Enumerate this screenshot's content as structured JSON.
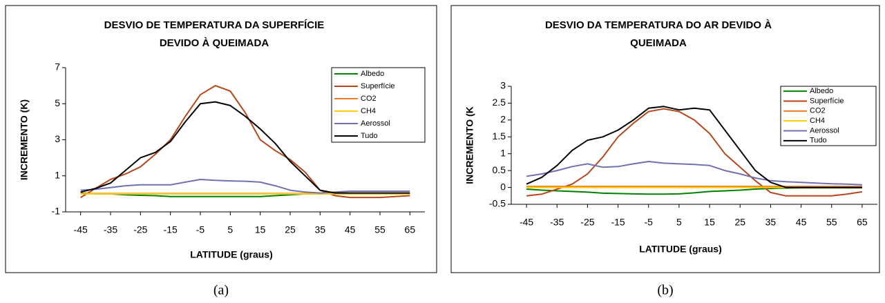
{
  "chart_data": [
    {
      "type": "line",
      "title": [
        "DESVIO DE TEMPERATURA DA SUPERFÍCIE",
        "DEVIDO À QUEIMADA"
      ],
      "x_label": "LATITUDE (graus)",
      "y_label": "INCREMENTO (K)",
      "caption": "(a)",
      "x": [
        -45,
        -40,
        -35,
        -30,
        -25,
        -20,
        -15,
        -10,
        -5,
        0,
        5,
        10,
        15,
        20,
        25,
        30,
        35,
        40,
        45,
        50,
        55,
        60,
        65
      ],
      "xlim": [
        -50,
        70
      ],
      "xticks": [
        -45,
        -35,
        -25,
        -15,
        -5,
        5,
        15,
        25,
        35,
        45,
        55,
        65
      ],
      "ylim": [
        -1,
        7
      ],
      "yticks": [
        -1,
        1,
        3,
        5,
        7
      ],
      "legend": "upper right",
      "series": [
        {
          "name": "Albedo",
          "color": "#008000",
          "values": [
            0.05,
            0,
            0,
            -0.05,
            -0.08,
            -0.1,
            -0.15,
            -0.15,
            -0.15,
            -0.15,
            -0.15,
            -0.15,
            -0.15,
            -0.1,
            -0.05,
            0,
            0,
            0,
            0,
            0,
            0,
            0,
            0
          ]
        },
        {
          "name": "Superfície",
          "color": "#b5471b",
          "values": [
            -0.2,
            0.3,
            0.8,
            1.1,
            1.5,
            2.2,
            3.0,
            4.3,
            5.5,
            6.0,
            5.7,
            4.5,
            3.0,
            2.4,
            1.9,
            1.2,
            0.2,
            -0.1,
            -0.2,
            -0.2,
            -0.2,
            -0.15,
            -0.1
          ]
        },
        {
          "name": "CO2",
          "color": "#f07820",
          "values": [
            0.02,
            0.02,
            0.02,
            0.02,
            0.02,
            0.02,
            0.02,
            0.02,
            0.02,
            0.02,
            0.02,
            0.02,
            0.02,
            0.02,
            0.02,
            0.02,
            0.02,
            0.02,
            0.02,
            0.02,
            0.02,
            0.02,
            0.02
          ]
        },
        {
          "name": "CH4",
          "color": "#ffcc00",
          "values": [
            0,
            0,
            0,
            0,
            0,
            0,
            0,
            0,
            0,
            0,
            0,
            0,
            0,
            0,
            0,
            0,
            0,
            0,
            0,
            0,
            0,
            0,
            0
          ]
        },
        {
          "name": "Aerossol",
          "color": "#7070b0",
          "values": [
            0.2,
            0.25,
            0.35,
            0.45,
            0.5,
            0.5,
            0.5,
            0.65,
            0.8,
            0.75,
            0.72,
            0.7,
            0.65,
            0.45,
            0.2,
            0.1,
            0.05,
            0.1,
            0.15,
            0.15,
            0.15,
            0.15,
            0.15
          ]
        },
        {
          "name": "Tudo",
          "color": "#000000",
          "values": [
            0.1,
            0.3,
            0.6,
            1.3,
            2.0,
            2.3,
            2.9,
            4.0,
            5.0,
            5.1,
            4.9,
            4.3,
            3.6,
            2.8,
            1.8,
            1.0,
            0.2,
            0.05,
            0.05,
            0.05,
            0.05,
            0.05,
            0.05
          ]
        }
      ]
    },
    {
      "type": "line",
      "title": [
        "DESVIO DA TEMPERATURA DO AR DEVIDO À",
        "QUEIMADA"
      ],
      "x_label": "LATITUDE (graus)",
      "y_label": "INCREMENTO (K",
      "caption": "(b)",
      "x": [
        -45,
        -40,
        -35,
        -30,
        -25,
        -20,
        -15,
        -10,
        -5,
        0,
        5,
        10,
        15,
        20,
        25,
        30,
        35,
        40,
        45,
        50,
        55,
        60,
        65
      ],
      "xlim": [
        -50,
        70
      ],
      "xticks": [
        -45,
        -35,
        -25,
        -15,
        -5,
        5,
        15,
        25,
        35,
        45,
        55,
        65
      ],
      "ylim": [
        -0.5,
        3
      ],
      "yticks": [
        -0.5,
        0,
        0.5,
        1,
        1.5,
        2,
        2.5,
        3
      ],
      "legend": "upper right",
      "series": [
        {
          "name": "Albedo",
          "color": "#008000",
          "values": [
            -0.05,
            -0.08,
            -0.1,
            -0.12,
            -0.14,
            -0.17,
            -0.18,
            -0.19,
            -0.2,
            -0.2,
            -0.19,
            -0.16,
            -0.12,
            -0.1,
            -0.08,
            -0.05,
            -0.03,
            -0.02,
            -0.01,
            -0.01,
            -0.01,
            -0.01,
            -0.01
          ]
        },
        {
          "name": "Superfície",
          "color": "#b5471b",
          "values": [
            -0.25,
            -0.2,
            -0.05,
            0.1,
            0.4,
            0.9,
            1.5,
            1.9,
            2.25,
            2.33,
            2.25,
            2.0,
            1.6,
            1.0,
            0.6,
            0.2,
            -0.15,
            -0.25,
            -0.25,
            -0.25,
            -0.25,
            -0.2,
            -0.13
          ]
        },
        {
          "name": "CO2",
          "color": "#f07820",
          "values": [
            0.03,
            0.03,
            0.03,
            0.03,
            0.03,
            0.03,
            0.03,
            0.03,
            0.03,
            0.03,
            0.03,
            0.03,
            0.03,
            0.03,
            0.03,
            0.03,
            0.03,
            0.03,
            0.03,
            0.03,
            0.03,
            0.03,
            0.03
          ]
        },
        {
          "name": "CH4",
          "color": "#ffcc00",
          "values": [
            0,
            0,
            0,
            0,
            0,
            0,
            0,
            0,
            0,
            0,
            0,
            0,
            0,
            0,
            0,
            0,
            0,
            0,
            0,
            0,
            0,
            0,
            0
          ]
        },
        {
          "name": "Aerossol",
          "color": "#7070b0",
          "values": [
            0.33,
            0.4,
            0.5,
            0.62,
            0.7,
            0.6,
            0.62,
            0.7,
            0.77,
            0.72,
            0.7,
            0.68,
            0.65,
            0.5,
            0.4,
            0.28,
            0.2,
            0.17,
            0.15,
            0.13,
            0.11,
            0.1,
            0.08
          ]
        },
        {
          "name": "Tudo",
          "color": "#000000",
          "values": [
            0.1,
            0.3,
            0.65,
            1.1,
            1.4,
            1.5,
            1.7,
            2.0,
            2.35,
            2.4,
            2.3,
            2.35,
            2.3,
            1.7,
            1.1,
            0.5,
            0.15,
            0,
            0,
            0,
            0,
            0,
            0
          ]
        }
      ]
    }
  ]
}
